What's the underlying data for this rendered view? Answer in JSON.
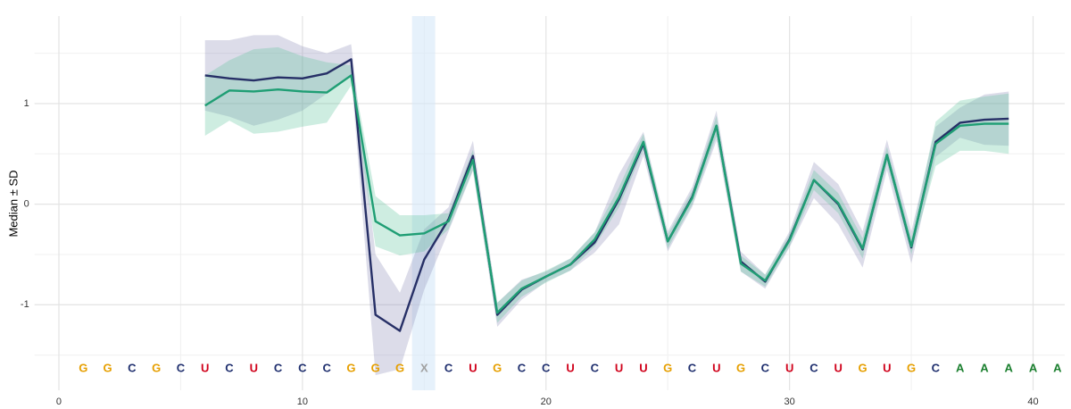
{
  "chart_data": {
    "type": "line",
    "y_label": "Median ± SD",
    "xlim": [
      -1,
      41.3
    ],
    "ylim": [
      -1.85,
      1.87
    ],
    "xticks": [
      0,
      10,
      20,
      30,
      40
    ],
    "yticks": [
      -1,
      0,
      1
    ],
    "grid": true,
    "minor_grid": true,
    "highlight": [
      14.5,
      15.45
    ],
    "highlight_color": "#d6e8f8",
    "x": [
      6,
      7,
      8,
      9,
      10,
      11,
      12,
      13,
      14,
      15,
      16,
      17,
      18,
      19,
      20,
      21,
      22,
      23,
      24,
      25,
      26,
      27,
      28,
      29,
      30,
      31,
      32,
      33,
      34,
      35,
      36,
      37,
      38,
      39
    ],
    "series": [
      {
        "color": "#262f66",
        "band_color": "#8a8ab5",
        "values": [
          1.28,
          1.25,
          1.23,
          1.26,
          1.25,
          1.3,
          1.44,
          -1.1,
          -1.26,
          -0.55,
          -0.15,
          0.48,
          -1.1,
          -0.85,
          -0.72,
          -0.6,
          -0.38,
          0.05,
          0.6,
          -0.37,
          0.07,
          0.78,
          -0.57,
          -0.77,
          -0.35,
          0.24,
          0.0,
          -0.45,
          0.49,
          -0.43,
          0.62,
          0.81,
          0.84,
          0.85
        ],
        "sd": [
          0.35,
          0.38,
          0.45,
          0.42,
          0.32,
          0.2,
          0.15,
          0.6,
          0.38,
          0.3,
          0.12,
          0.15,
          0.12,
          0.1,
          0.05,
          0.06,
          0.1,
          0.25,
          0.12,
          0.1,
          0.1,
          0.15,
          0.1,
          0.07,
          0.08,
          0.18,
          0.2,
          0.18,
          0.15,
          0.16,
          0.15,
          0.15,
          0.25,
          0.27
        ]
      },
      {
        "color": "#1f9e74",
        "band_color": "#5cc29a",
        "values": [
          0.98,
          1.13,
          1.12,
          1.14,
          1.12,
          1.11,
          1.28,
          -0.17,
          -0.31,
          -0.29,
          -0.17,
          0.44,
          -1.08,
          -0.84,
          -0.72,
          -0.6,
          -0.35,
          0.07,
          0.62,
          -0.37,
          0.06,
          0.78,
          -0.59,
          -0.76,
          -0.36,
          0.24,
          0.01,
          -0.44,
          0.49,
          -0.42,
          0.6,
          0.78,
          0.8,
          0.8
        ],
        "sd": [
          0.3,
          0.3,
          0.42,
          0.42,
          0.35,
          0.3,
          0.1,
          0.25,
          0.2,
          0.18,
          0.08,
          0.1,
          0.1,
          0.08,
          0.06,
          0.06,
          0.07,
          0.1,
          0.08,
          0.07,
          0.07,
          0.1,
          0.08,
          0.06,
          0.06,
          0.1,
          0.1,
          0.1,
          0.08,
          0.08,
          0.22,
          0.25,
          0.27,
          0.3
        ]
      }
    ],
    "sequence": [
      "G",
      "G",
      "C",
      "G",
      "C",
      "U",
      "C",
      "U",
      "C",
      "C",
      "C",
      "G",
      "G",
      "G",
      "X",
      "C",
      "U",
      "G",
      "C",
      "C",
      "U",
      "C",
      "U",
      "U",
      "G",
      "C",
      "U",
      "G",
      "C",
      "U",
      "C",
      "U",
      "G",
      "U",
      "G",
      "C",
      "A",
      "A",
      "A",
      "A",
      "A"
    ],
    "letter_colors": {
      "G": "#e69f00",
      "C": "#1f2f6e",
      "U": "#d0021b",
      "A": "#1a7f2e",
      "X": "#a0a0a0"
    }
  }
}
